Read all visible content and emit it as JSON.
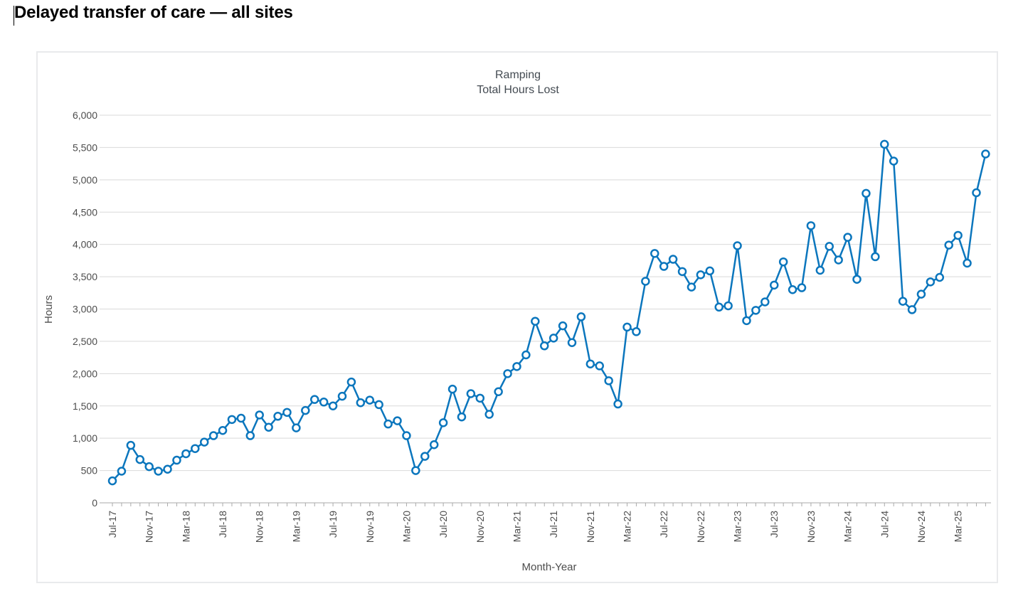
{
  "page": {
    "title": "Delayed transfer of care — all sites"
  },
  "colors": {
    "series": "#0b76bd",
    "marker_fill": "#ffffff",
    "grid": "#d9d9d9",
    "axis": "#aaaaaa"
  },
  "chart_data": {
    "type": "line",
    "title": "Ramping",
    "subtitle": "Total Hours Lost",
    "xlabel": "Month-Year",
    "ylabel": "Hours",
    "ylim": [
      0,
      6000
    ],
    "yticks": [
      0,
      500,
      1000,
      1500,
      2000,
      2500,
      3000,
      3500,
      4000,
      4500,
      5000,
      5500,
      6000
    ],
    "ytick_labels": [
      "0",
      "500",
      "1,000",
      "1,500",
      "2,000",
      "2,500",
      "3,000",
      "3,500",
      "4,000",
      "4,500",
      "5,000",
      "5,500",
      "6,000"
    ],
    "grid": true,
    "legend": "none",
    "x_tick_labels": [
      {
        "index": 0,
        "label": "Jul-17"
      },
      {
        "index": 4,
        "label": "Nov-17"
      },
      {
        "index": 8,
        "label": "Mar-18"
      },
      {
        "index": 12,
        "label": "Jul-18"
      },
      {
        "index": 16,
        "label": "Nov-18"
      },
      {
        "index": 20,
        "label": "Mar-19"
      },
      {
        "index": 24,
        "label": "Jul-19"
      },
      {
        "index": 28,
        "label": "Nov-19"
      },
      {
        "index": 32,
        "label": "Mar-20"
      },
      {
        "index": 36,
        "label": "Jul-20"
      },
      {
        "index": 40,
        "label": "Nov-20"
      },
      {
        "index": 44,
        "label": "Mar-21"
      },
      {
        "index": 48,
        "label": "Jul-21"
      },
      {
        "index": 52,
        "label": "Nov-21"
      },
      {
        "index": 56,
        "label": "Mar-22"
      },
      {
        "index": 60,
        "label": "Jul-22"
      },
      {
        "index": 64,
        "label": "Nov-22"
      },
      {
        "index": 68,
        "label": "Mar-23"
      },
      {
        "index": 72,
        "label": "Jul-23"
      },
      {
        "index": 76,
        "label": "Nov-23"
      },
      {
        "index": 80,
        "label": "Mar-24"
      },
      {
        "index": 84,
        "label": "Jul-24"
      },
      {
        "index": 88,
        "label": "Nov-24"
      },
      {
        "index": 92,
        "label": "Mar-25"
      }
    ],
    "series": [
      {
        "values": [
          340,
          490,
          890,
          670,
          560,
          490,
          520,
          660,
          760,
          840,
          940,
          1040,
          1120,
          1290,
          1310,
          1040,
          1360,
          1170,
          1340,
          1400,
          1160,
          1430,
          1600,
          1560,
          1500,
          1650,
          1870,
          1550,
          1590,
          1520,
          1220,
          1270,
          1040,
          500,
          720,
          900,
          1240,
          1760,
          1330,
          1690,
          1620,
          1370,
          1720,
          2000,
          2110,
          2290,
          2810,
          2430,
          2550,
          2740,
          2480,
          2880,
          2150,
          2120,
          1890,
          1530,
          2720,
          2650,
          3430,
          3860,
          3660,
          3770,
          3580,
          3340,
          3530,
          3590,
          3030,
          3050,
          3980,
          2820,
          2980,
          3110,
          3370,
          3730,
          3300,
          3330,
          4290,
          3600,
          3970,
          3760,
          4110,
          3460,
          4790,
          3810,
          5550,
          5290,
          3120,
          2990,
          3230,
          3420,
          3490,
          3990,
          4140,
          3710,
          4800,
          5400
        ]
      }
    ]
  }
}
